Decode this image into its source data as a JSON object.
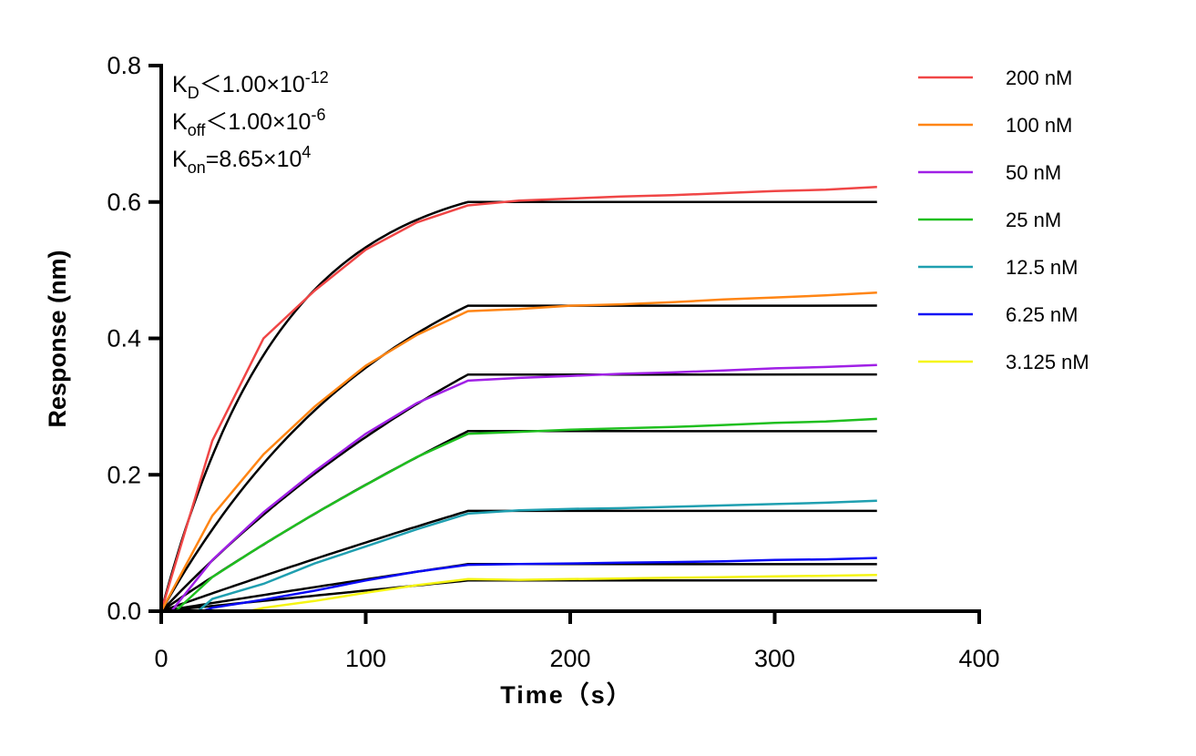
{
  "chart_data": {
    "type": "line",
    "xlabel": "Time（s）",
    "ylabel": "Response (nm)",
    "xlim": [
      0,
      400
    ],
    "ylim": [
      0,
      0.8
    ],
    "xticks": [
      "0",
      "100",
      "200",
      "300",
      "400"
    ],
    "yticks": [
      "0.0",
      "0.2",
      "0.4",
      "0.6",
      "0.8"
    ],
    "grid": false,
    "legend_position": "top-right",
    "annotations": [
      {
        "main": "K",
        "sub": "D",
        "rest": "<1.00×10",
        "sup": "-12"
      },
      {
        "main": "K",
        "sub": "off",
        "rest": "<1.00×10",
        "sup": "-6"
      },
      {
        "main": "K",
        "sub": "on",
        "rest": "=8.65×10",
        "sup": "4"
      }
    ],
    "kon": 86500,
    "association_end": 150,
    "fit_color": "#000000",
    "series": [
      {
        "name": "200 nM",
        "conc_nM": 200,
        "color": "#f04646",
        "fit_plateau": 0.6,
        "x": [
          0,
          25,
          50,
          75,
          100,
          125,
          150,
          175,
          200,
          225,
          250,
          275,
          300,
          325,
          350
        ],
        "y": [
          0,
          0.25,
          0.4,
          0.47,
          0.53,
          0.57,
          0.595,
          0.602,
          0.605,
          0.608,
          0.61,
          0.613,
          0.616,
          0.618,
          0.622
        ]
      },
      {
        "name": "100 nM",
        "conc_nM": 100,
        "color": "#ff8514",
        "fit_plateau": 0.448,
        "x": [
          0,
          25,
          50,
          75,
          100,
          125,
          150,
          175,
          200,
          225,
          250,
          275,
          300,
          325,
          350
        ],
        "y": [
          0,
          0.14,
          0.23,
          0.3,
          0.36,
          0.405,
          0.44,
          0.443,
          0.448,
          0.45,
          0.453,
          0.457,
          0.46,
          0.463,
          0.467
        ]
      },
      {
        "name": "50 nM",
        "conc_nM": 50,
        "color": "#a020e6",
        "fit_plateau": 0.347,
        "x": [
          5,
          25,
          50,
          75,
          100,
          125,
          150,
          175,
          200,
          225,
          250,
          275,
          300,
          325,
          350
        ],
        "y": [
          0,
          0.075,
          0.145,
          0.205,
          0.26,
          0.305,
          0.338,
          0.342,
          0.345,
          0.348,
          0.35,
          0.353,
          0.356,
          0.358,
          0.361
        ]
      },
      {
        "name": "25 nM",
        "conc_nM": 25,
        "color": "#1fbf1f",
        "fit_plateau": 0.264,
        "x": [
          7,
          25,
          50,
          75,
          100,
          125,
          150,
          175,
          200,
          225,
          250,
          275,
          300,
          325,
          350
        ],
        "y": [
          0,
          0.05,
          0.098,
          0.143,
          0.185,
          0.226,
          0.26,
          0.263,
          0.266,
          0.268,
          0.27,
          0.273,
          0.276,
          0.278,
          0.282
        ]
      },
      {
        "name": "12.5 nM",
        "conc_nM": 12.5,
        "color": "#1f9fb0",
        "fit_plateau": 0.147,
        "x": [
          18,
          25,
          50,
          75,
          100,
          125,
          150,
          175,
          200,
          225,
          250,
          275,
          300,
          325,
          350
        ],
        "y": [
          0,
          0.018,
          0.04,
          0.07,
          0.095,
          0.12,
          0.143,
          0.148,
          0.15,
          0.151,
          0.153,
          0.155,
          0.157,
          0.159,
          0.162
        ]
      },
      {
        "name": "6.25 nM",
        "conc_nM": 6.25,
        "color": "#0a0af5",
        "fit_plateau": 0.069,
        "x": [
          20,
          25,
          50,
          75,
          100,
          125,
          150,
          175,
          200,
          225,
          250,
          275,
          300,
          325,
          350
        ],
        "y": [
          0,
          0.005,
          0.017,
          0.03,
          0.045,
          0.058,
          0.068,
          0.069,
          0.07,
          0.071,
          0.072,
          0.073,
          0.075,
          0.076,
          0.078
        ]
      },
      {
        "name": "3.125 nM",
        "conc_nM": 3.125,
        "color": "#f5f514",
        "fit_plateau": 0.045,
        "x": [
          43,
          50,
          75,
          100,
          125,
          150,
          175,
          200,
          225,
          250,
          275,
          300,
          325,
          350
        ],
        "y": [
          0,
          0.005,
          0.015,
          0.027,
          0.038,
          0.047,
          0.046,
          0.047,
          0.048,
          0.049,
          0.05,
          0.051,
          0.052,
          0.053
        ]
      }
    ]
  }
}
